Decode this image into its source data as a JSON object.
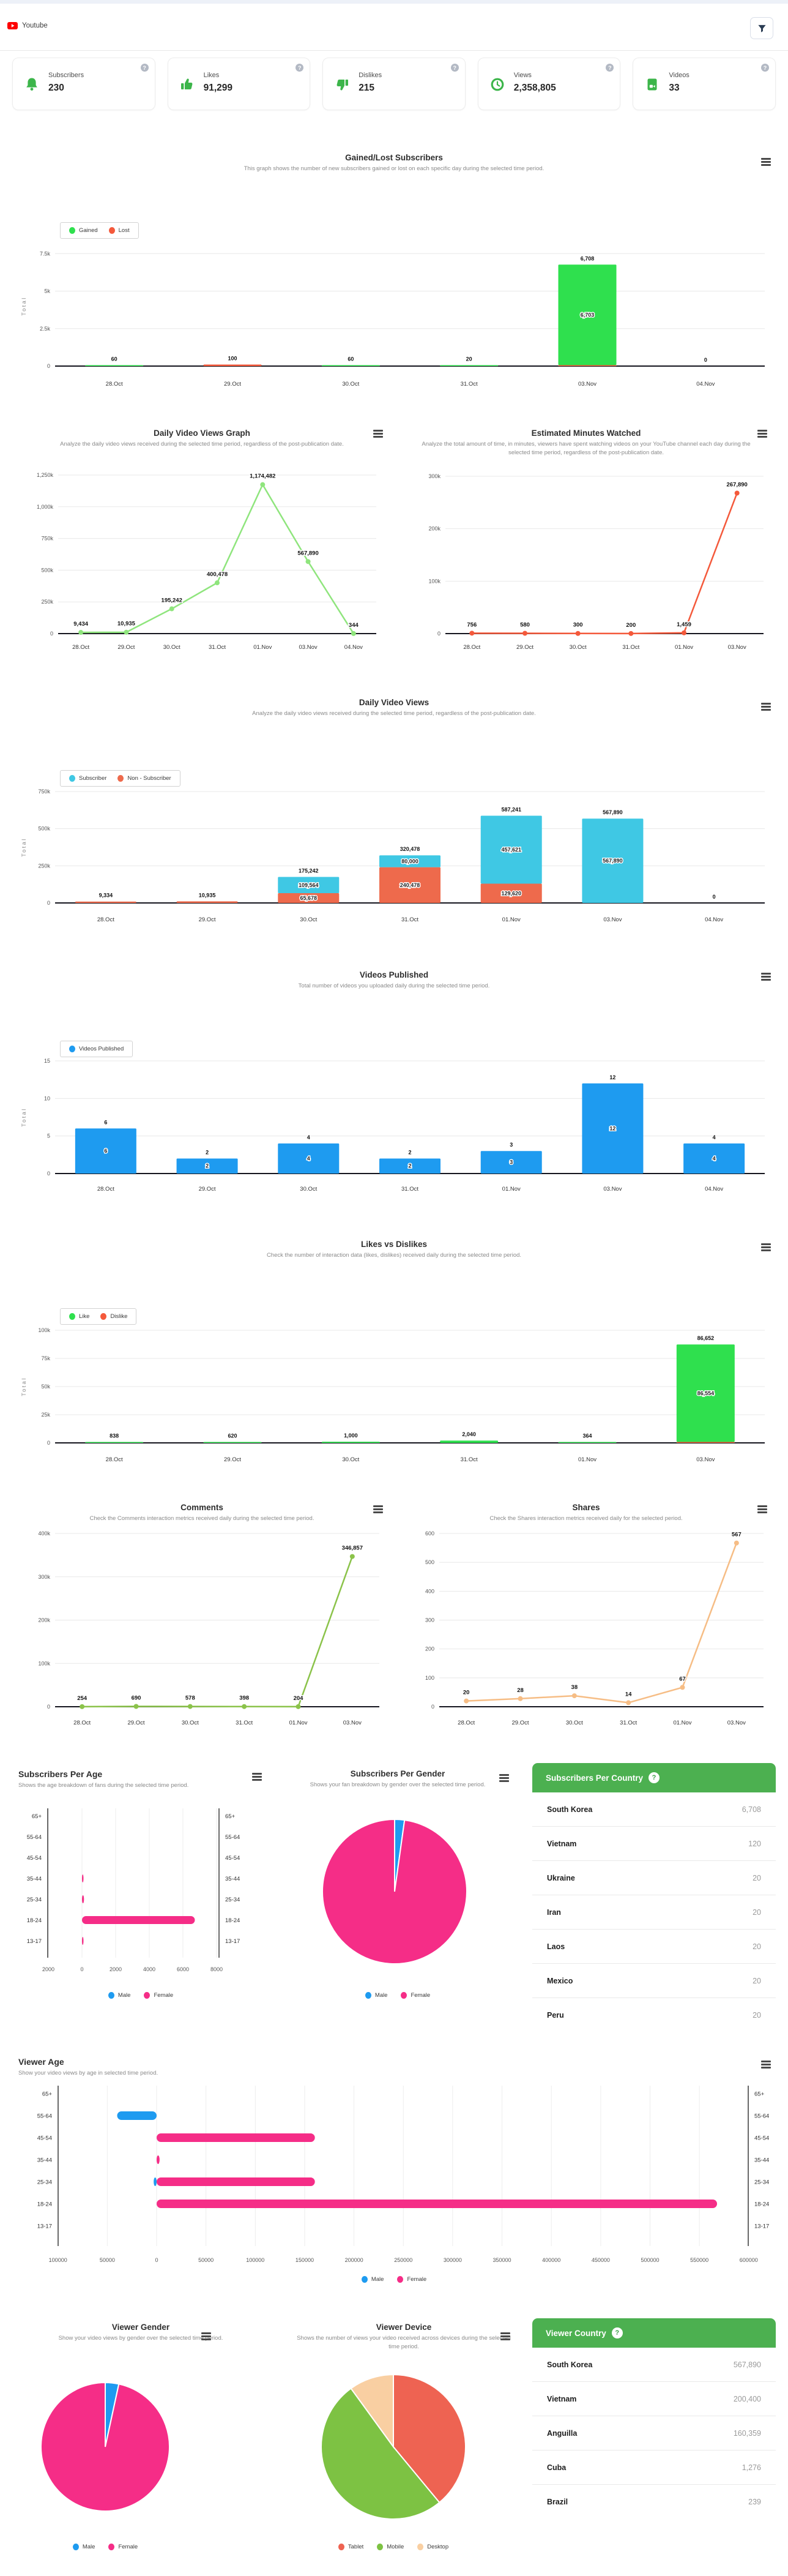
{
  "header": {
    "app_title": "Youtube"
  },
  "stats": [
    {
      "icon": "bell-icon",
      "label": "Subscribers",
      "value": "230"
    },
    {
      "icon": "thumbs-up-icon",
      "label": "Likes",
      "value": "91,299"
    },
    {
      "icon": "thumbs-down-icon",
      "label": "Dislikes",
      "value": "215"
    },
    {
      "icon": "clock-icon",
      "label": "Views",
      "value": "2,358,805"
    },
    {
      "icon": "video-icon",
      "label": "Videos",
      "value": "33"
    }
  ],
  "charts": {
    "gained_lost": {
      "title": "Gained/Lost Subscribers",
      "subtitle": "This graph shows the number of new subscribers gained or lost on each specific day during the selected time period.",
      "chart_type": "stacked-bar",
      "ylabel": "Total",
      "categories": [
        "28.Oct",
        "29.Oct",
        "30.Oct",
        "31.Oct",
        "03.Nov",
        "04.Nov"
      ],
      "y_max": 8000,
      "y_ticks": [
        {
          "v": 0,
          "label": "0"
        },
        {
          "v": 2500,
          "label": "2.5k"
        },
        {
          "v": 5000,
          "label": "5k"
        },
        {
          "v": 7500,
          "label": "7.5k"
        }
      ],
      "series": [
        {
          "name": "Gained",
          "color": "#2fe04e",
          "values": [
            60,
            0,
            60,
            20,
            6703,
            0
          ],
          "seg_labels": [
            null,
            null,
            null,
            null,
            "6,703",
            null
          ]
        },
        {
          "name": "Lost",
          "color": "#f4593b",
          "values": [
            0,
            100,
            0,
            0,
            5,
            0
          ],
          "seg_labels": [
            null,
            null,
            null,
            null,
            "5",
            null
          ]
        }
      ],
      "totals": [
        "60",
        "100",
        "60",
        "20",
        "6,708",
        "0"
      ],
      "legend": [
        {
          "label": "Gained",
          "color": "#2fe04e"
        },
        {
          "label": "Lost",
          "color": "#f4593b"
        }
      ]
    },
    "daily_views_line": {
      "title": "Daily Video Views Graph",
      "subtitle": "Analyze the daily video views received during the selected time period, regardless of the post-publication date.",
      "chart_type": "line",
      "color": "#8fe57d",
      "categories": [
        "28.Oct",
        "29.Oct",
        "30.Oct",
        "31.Oct",
        "01.Nov",
        "03.Nov",
        "04.Nov"
      ],
      "values": [
        9434,
        10935,
        195242,
        400478,
        1174482,
        567890,
        344
      ],
      "point_labels": [
        "9,434",
        "10,935",
        "195,242",
        "400,478",
        "1,174,482",
        "567,890",
        "344"
      ],
      "y_max": 1250000,
      "y_ticks": [
        {
          "v": 0,
          "label": "0"
        },
        {
          "v": 250000,
          "label": "250k"
        },
        {
          "v": 500000,
          "label": "500k"
        },
        {
          "v": 750000,
          "label": "750k"
        },
        {
          "v": 1000000,
          "label": "1,000k"
        },
        {
          "v": 1250000,
          "label": "1,250k"
        }
      ]
    },
    "minutes_watched": {
      "title": "Estimated Minutes Watched",
      "subtitle": "Analyze the total amount of time, in minutes, viewers have spent watching videos on your YouTube channel each day during the selected time period, regardless of the post-publication date.",
      "chart_type": "line",
      "color": "#f4593b",
      "categories": [
        "28.Oct",
        "29.Oct",
        "30.Oct",
        "31.Oct",
        "01.Nov",
        "03.Nov"
      ],
      "values": [
        756,
        580,
        300,
        200,
        1459,
        267890
      ],
      "point_labels": [
        "756",
        "580",
        "300",
        "200",
        "1,459",
        "267,890"
      ],
      "y_max": 300000,
      "y_ticks": [
        {
          "v": 0,
          "label": "0"
        },
        {
          "v": 100000,
          "label": "100k"
        },
        {
          "v": 200000,
          "label": "200k"
        },
        {
          "v": 300000,
          "label": "300k"
        }
      ]
    },
    "daily_views_stacked": {
      "title": "Daily Video Views",
      "subtitle": "Analyze the daily video views received during the selected time period, regardless of the post-publication date.",
      "chart_type": "stacked-bar",
      "ylabel": "Total",
      "categories": [
        "28.Oct",
        "29.Oct",
        "30.Oct",
        "31.Oct",
        "01.Nov",
        "03.Nov",
        "04.Nov"
      ],
      "y_max": 750000,
      "y_ticks": [
        {
          "v": 0,
          "label": "0"
        },
        {
          "v": 250000,
          "label": "250k"
        },
        {
          "v": 500000,
          "label": "500k"
        },
        {
          "v": 750000,
          "label": "750k"
        }
      ],
      "series": [
        {
          "name": "Subscriber",
          "color": "#3fc8e4",
          "values": [
            0,
            0,
            109564,
            80000,
            457621,
            567890,
            0
          ],
          "seg_labels": [
            null,
            null,
            "109,564",
            "80,000",
            "457,621",
            "567,890",
            null
          ]
        },
        {
          "name": "Non - Subscriber",
          "color": "#ee6a4c",
          "values": [
            9334,
            10935,
            65678,
            240478,
            129620,
            0,
            0
          ],
          "seg_labels": [
            null,
            null,
            "65,678",
            "240,478",
            "129,620",
            "0",
            null
          ]
        }
      ],
      "totals": [
        "9,334",
        "10,935",
        "175,242",
        "320,478",
        "587,241",
        "567,890",
        "0"
      ],
      "legend": [
        {
          "label": "Subscriber",
          "color": "#3fc8e4"
        },
        {
          "label": "Non - Subscriber",
          "color": "#ee6a4c"
        }
      ]
    },
    "videos_published": {
      "title": "Videos Published",
      "subtitle": "Total number of videos you uploaded daily during the selected time period.",
      "chart_type": "stacked-bar",
      "ylabel": "Total",
      "categories": [
        "28.Oct",
        "29.Oct",
        "30.Oct",
        "31.Oct",
        "01.Nov",
        "03.Nov",
        "04.Nov"
      ],
      "y_max": 15,
      "y_ticks": [
        {
          "v": 0,
          "label": "0"
        },
        {
          "v": 5,
          "label": "5"
        },
        {
          "v": 10,
          "label": "10"
        },
        {
          "v": 15,
          "label": "15"
        }
      ],
      "series": [
        {
          "name": "Videos Published",
          "color": "#1e9bf0",
          "values": [
            6,
            2,
            4,
            2,
            3,
            12,
            4
          ],
          "seg_labels": [
            "6",
            "2",
            "4",
            "2",
            "3",
            "12",
            "4"
          ]
        }
      ],
      "totals": [
        "6",
        "2",
        "4",
        "2",
        "3",
        "12",
        "4"
      ],
      "legend": [
        {
          "label": "Videos Published",
          "color": "#1e9bf0"
        }
      ]
    },
    "likes_dislikes": {
      "title": "Likes vs Dislikes",
      "subtitle": "Check the number of interaction data (likes, dislikes) received daily during the selected time period.",
      "chart_type": "stacked-bar",
      "ylabel": "Total",
      "categories": [
        "28.Oct",
        "29.Oct",
        "30.Oct",
        "31.Oct",
        "01.Nov",
        "03.Nov"
      ],
      "y_max": 100000,
      "y_ticks": [
        {
          "v": 0,
          "label": "0"
        },
        {
          "v": 25000,
          "label": "25k"
        },
        {
          "v": 50000,
          "label": "50k"
        },
        {
          "v": 75000,
          "label": "75k"
        },
        {
          "v": 100000,
          "label": "100k"
        }
      ],
      "series": [
        {
          "name": "Like",
          "color": "#2fe04e",
          "values": [
            838,
            620,
            1000,
            2040,
            364,
            86554
          ],
          "seg_labels": [
            null,
            null,
            null,
            null,
            null,
            "86,554"
          ]
        },
        {
          "name": "Dislike",
          "color": "#f4593b",
          "values": [
            0,
            0,
            0,
            0,
            0,
            98
          ],
          "seg_labels": [
            null,
            null,
            null,
            null,
            null,
            "98"
          ]
        }
      ],
      "totals": [
        "838",
        "620",
        "1,000",
        "2,040",
        "364",
        "86,652"
      ],
      "legend": [
        {
          "label": "Like",
          "color": "#2fe04e"
        },
        {
          "label": "Dislike",
          "color": "#f4593b"
        }
      ]
    },
    "comments": {
      "title": "Comments",
      "subtitle": "Check the Comments interaction metrics received daily during the selected time period.",
      "chart_type": "line",
      "color": "#8bc34a",
      "categories": [
        "28.Oct",
        "29.Oct",
        "30.Oct",
        "31.Oct",
        "01.Nov",
        "03.Nov"
      ],
      "values": [
        254,
        690,
        578,
        398,
        204,
        346857
      ],
      "point_labels": [
        "254",
        "690",
        "578",
        "398",
        "204",
        "346,857"
      ],
      "y_max": 400000,
      "y_ticks": [
        {
          "v": 0,
          "label": "0"
        },
        {
          "v": 100000,
          "label": "100k"
        },
        {
          "v": 200000,
          "label": "200k"
        },
        {
          "v": 300000,
          "label": "300k"
        },
        {
          "v": 400000,
          "label": "400k"
        }
      ]
    },
    "shares": {
      "title": "Shares",
      "subtitle": "Check the Shares interaction metrics received daily for the selected period.",
      "chart_type": "line",
      "color": "#f6bd85",
      "categories": [
        "28.Oct",
        "29.Oct",
        "30.Oct",
        "31.Oct",
        "01.Nov",
        "03.Nov"
      ],
      "values": [
        20,
        28,
        38,
        14,
        67,
        567
      ],
      "point_labels": [
        "20",
        "28",
        "38",
        "14",
        "67",
        "567"
      ],
      "y_max": 600,
      "y_ticks": [
        {
          "v": 0,
          "label": "0"
        },
        {
          "v": 100,
          "label": "100"
        },
        {
          "v": 200,
          "label": "200"
        },
        {
          "v": 300,
          "label": "300"
        },
        {
          "v": 400,
          "label": "400"
        },
        {
          "v": 500,
          "label": "500"
        },
        {
          "v": 600,
          "label": "600"
        }
      ]
    },
    "subs_age": {
      "title": "Subscribers Per Age",
      "subtitle": "Shows the age breakdown of fans during the selected time period.",
      "chart_type": "pyramid",
      "age_groups": [
        "65+",
        "55-64",
        "45-54",
        "35-44",
        "25-34",
        "18-24",
        "13-17"
      ],
      "male_color": "#1e9bf0",
      "female_color": "#f52d87",
      "male": [
        0,
        0,
        0,
        0,
        0,
        0,
        0
      ],
      "female": [
        0,
        0,
        0,
        20,
        120,
        6708,
        20
      ],
      "x_ticks": [
        {
          "v": -2000,
          "label": "2000"
        },
        {
          "v": 0,
          "label": "0"
        },
        {
          "v": 2000,
          "label": "2000"
        },
        {
          "v": 4000,
          "label": "4000"
        },
        {
          "v": 6000,
          "label": "6000"
        },
        {
          "v": 8000,
          "label": "8000"
        }
      ],
      "legend": [
        {
          "label": "Male",
          "color": "#1e9bf0"
        },
        {
          "label": "Female",
          "color": "#f52d87"
        }
      ]
    },
    "subs_gender": {
      "title": "Subscribers Per Gender",
      "subtitle": "Shows your fan breakdown by gender over the selected time period.",
      "chart_type": "pie",
      "slices": [
        {
          "label": "Male",
          "value": 2.2,
          "color": "#1e9bf0"
        },
        {
          "label": "Female",
          "value": 97.8,
          "color": "#f52d87"
        }
      ],
      "legend": [
        {
          "label": "Male",
          "color": "#1e9bf0"
        },
        {
          "label": "Female",
          "color": "#f52d87"
        }
      ]
    },
    "viewer_age": {
      "title": "Viewer Age",
      "subtitle": "Show your video views by age in selected time period.",
      "chart_type": "pyramid",
      "age_groups": [
        "65+",
        "55-64",
        "45-54",
        "35-44",
        "25-34",
        "18-24",
        "13-17"
      ],
      "male_color": "#1e9bf0",
      "female_color": "#f52d87",
      "male": [
        0,
        40000,
        0,
        0,
        3000,
        0,
        0
      ],
      "female": [
        0,
        0,
        160359,
        3000,
        160359,
        567890,
        0
      ],
      "x_ticks": [
        {
          "v": -100000,
          "label": "100000"
        },
        {
          "v": -50000,
          "label": "50000"
        },
        {
          "v": 0,
          "label": "0"
        },
        {
          "v": 50000,
          "label": "50000"
        },
        {
          "v": 100000,
          "label": "100000"
        },
        {
          "v": 150000,
          "label": "150000"
        },
        {
          "v": 200000,
          "label": "200000"
        },
        {
          "v": 250000,
          "label": "250000"
        },
        {
          "v": 300000,
          "label": "300000"
        },
        {
          "v": 350000,
          "label": "350000"
        },
        {
          "v": 400000,
          "label": "400000"
        },
        {
          "v": 450000,
          "label": "450000"
        },
        {
          "v": 500000,
          "label": "500000"
        },
        {
          "v": 550000,
          "label": "550000"
        },
        {
          "v": 600000,
          "label": "600000"
        }
      ],
      "legend": [
        {
          "label": "Male",
          "color": "#1e9bf0"
        },
        {
          "label": "Female",
          "color": "#f52d87"
        }
      ]
    },
    "viewer_gender": {
      "title": "Viewer Gender",
      "subtitle": "Show your video views by gender over the selected time period.",
      "chart_type": "pie",
      "slices": [
        {
          "label": "Male",
          "value": 3.4,
          "color": "#1e9bf0"
        },
        {
          "label": "Female",
          "value": 96.6,
          "color": "#f52d87"
        }
      ],
      "legend": [
        {
          "label": "Male",
          "color": "#1e9bf0"
        },
        {
          "label": "Female",
          "color": "#f52d87"
        }
      ]
    },
    "viewer_device": {
      "title": "Viewer Device",
      "subtitle": "Shows the number of views your video received across devices during the selected time period.",
      "chart_type": "pie",
      "slices": [
        {
          "label": "Tablet",
          "value": 39,
          "color": "#ee6352"
        },
        {
          "label": "Mobile",
          "value": 51,
          "color": "#7dc243"
        },
        {
          "label": "Desktop",
          "value": 10,
          "color": "#f9cfa2"
        }
      ],
      "legend": [
        {
          "label": "Tablet",
          "color": "#ee6352"
        },
        {
          "label": "Mobile",
          "color": "#7dc243"
        },
        {
          "label": "Desktop",
          "color": "#f9cfa2"
        }
      ]
    }
  },
  "tables": {
    "subscribers_per_country": {
      "title": "Subscribers Per Country",
      "rows": [
        {
          "country": "South Korea",
          "value": "6,708"
        },
        {
          "country": "Vietnam",
          "value": "120"
        },
        {
          "country": "Ukraine",
          "value": "20"
        },
        {
          "country": "Iran",
          "value": "20"
        },
        {
          "country": "Laos",
          "value": "20"
        },
        {
          "country": "Mexico",
          "value": "20"
        },
        {
          "country": "Peru",
          "value": "20"
        }
      ]
    },
    "viewer_country": {
      "title": "Viewer Country",
      "rows": [
        {
          "country": "South Korea",
          "value": "567,890"
        },
        {
          "country": "Vietnam",
          "value": "200,400"
        },
        {
          "country": "Anguilla",
          "value": "160,359"
        },
        {
          "country": "Cuba",
          "value": "1,276"
        },
        {
          "country": "Brazil",
          "value": "239"
        }
      ]
    }
  }
}
